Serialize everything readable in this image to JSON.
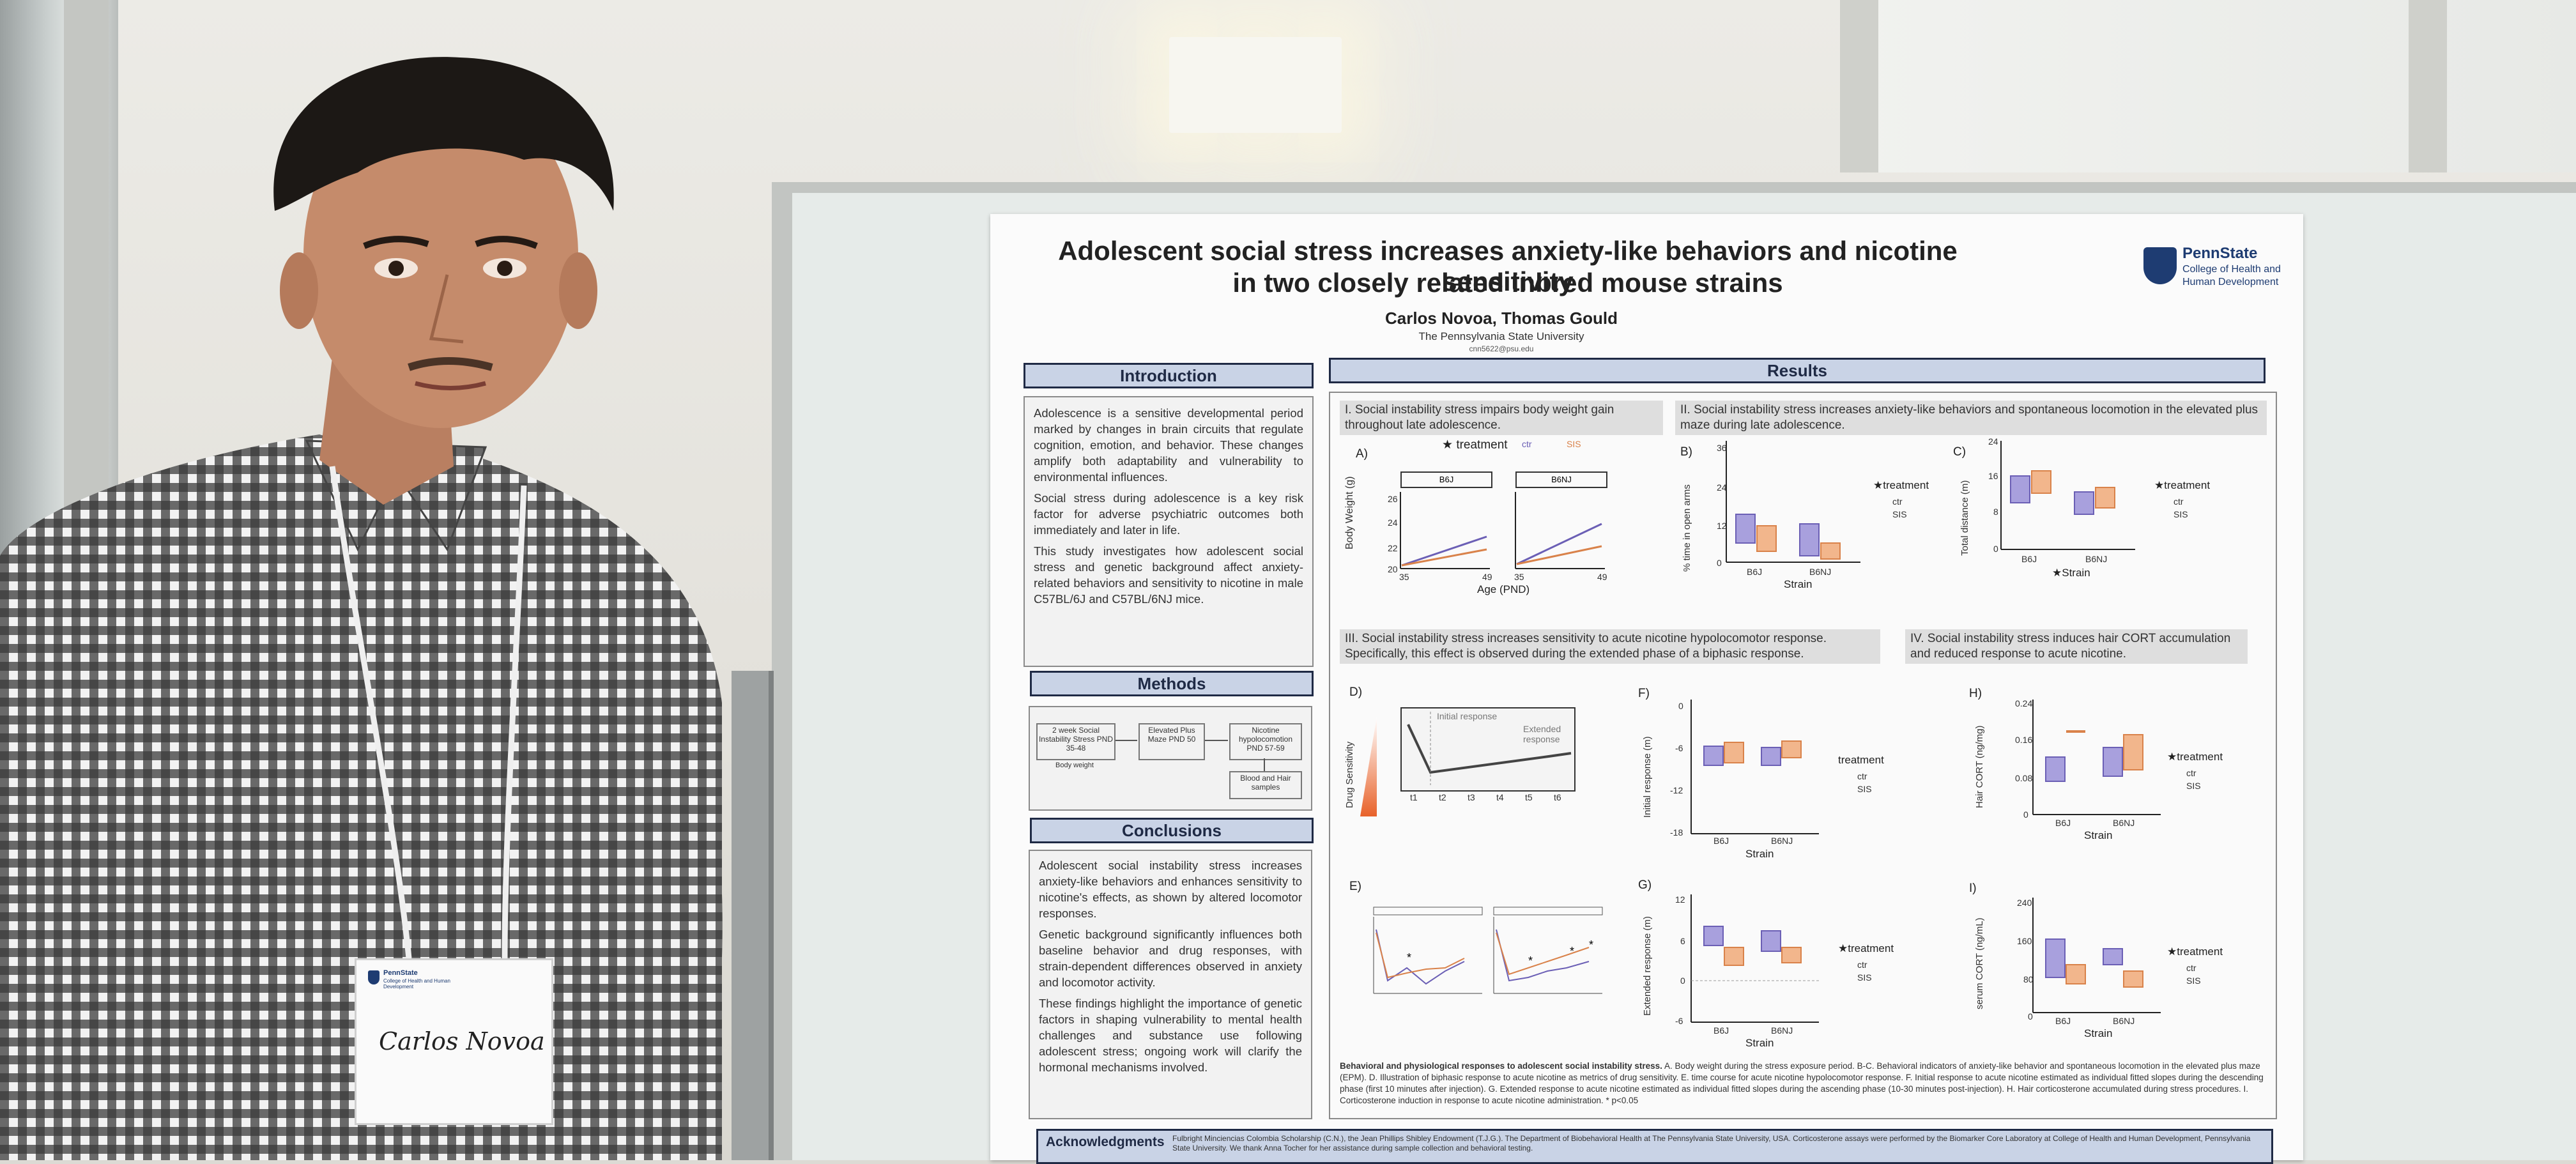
{
  "poster": {
    "title_line1": "Adolescent social stress increases anxiety-like behaviors and nicotine sensitivity",
    "title_line2": "in two closely related inbred mouse strains",
    "authors": "Carlos Novoa, Thomas Gould",
    "affiliation": "The Pennsylvania State University",
    "email": "cnn5622@psu.edu",
    "logo_name": "PennState",
    "logo_line1": "College of Health and",
    "logo_line2": "Human Development",
    "sections": {
      "introduction": "Introduction",
      "methods": "Methods",
      "conclusions": "Conclusions",
      "results": "Results",
      "acknowledgments": "Acknowledgments"
    },
    "intro_paragraphs": [
      "Adolescence is a sensitive developmental period marked by changes in brain circuits that regulate cognition, emotion, and behavior. These changes amplify both adaptability and vulnerability to environmental influences.",
      "Social stress during adolescence is a key risk factor for adverse psychiatric outcomes both immediately and later in life.",
      "This study investigates how adolescent social stress and genetic background affect anxiety-related behaviors and sensitivity to nicotine in male C57BL/6J and C57BL/6NJ mice."
    ],
    "methods_flow": {
      "box1": "2 week Social Instability Stress PND 35-48",
      "box2": "Elevated Plus Maze PND 50",
      "box3": "Nicotine hypolocomotion PND 57-59",
      "box4": "Blood and Hair samples",
      "note": "Body weight"
    },
    "conclusion_paragraphs": [
      "Adolescent social instability stress increases anxiety-like behaviors and enhances sensitivity to nicotine's effects, as shown by altered locomotor responses.",
      "Genetic background significantly influences both baseline behavior and drug responses, with strain-dependent differences observed in anxiety and locomotor activity.",
      "These findings highlight the importance of genetic factors in shaping vulnerability to mental health challenges and substance use following adolescent stress; ongoing work will clarify the hormonal mechanisms involved."
    ],
    "results": {
      "r1": "I. Social instability stress impairs body weight gain throughout late adolescence.",
      "r2": "II. Social instability stress increases anxiety-like behaviors and spontaneous locomotion in the elevated plus maze during late adolescence.",
      "r3": "III. Social instability stress increases sensitivity to acute nicotine hypolocomotor response. Specifically, this effect is observed during the extended phase of a biphasic response.",
      "r4": "IV. Social instability stress induces hair CORT accumulation and reduced response to acute nicotine.",
      "panelA": "A)",
      "panelB": "B)",
      "panelC": "C)",
      "panelD": "D)",
      "panelE": "E)",
      "panelF": "F)",
      "panelG": "G)",
      "panelH": "H)",
      "panelI": "I)",
      "legend_treatment": "treatment",
      "legend_ctr": "ctr",
      "legend_sis": "SIS",
      "strain_b6j": "B6J",
      "strain_b6nj": "B6NJ",
      "xlabel_strain": "Strain",
      "xlabel_age": "Age (PND)",
      "ylabel_weight": "Body Weight (g)",
      "ylabel_open": "% time in open arms",
      "ylabel_distance": "Total distance (m)",
      "ylabel_initial": "Initial response (m)",
      "ylabel_extended": "Extended response (m)",
      "ylabel_hair": "Hair CORT (ng/mg)",
      "ylabel_serum": "serum CORT (ng/mL)",
      "drug_sensitivity": "Drug Sensitivity",
      "initial_response": "Initial response",
      "extended_response": "Extended response",
      "weight_ticks": [
        "20",
        "22",
        "24",
        "26"
      ],
      "age_ticks": [
        "35",
        "49"
      ],
      "open_ticks": [
        "0",
        "12",
        "24",
        "36"
      ],
      "dist_ticks": [
        "0",
        "8",
        "16",
        "24"
      ],
      "initial_ticks": [
        "-18",
        "-12",
        "-6",
        "0"
      ],
      "extended_ticks": [
        "-6",
        "0",
        "6",
        "12"
      ],
      "hair_ticks": [
        "0",
        "0.08",
        "0.16",
        "0.24"
      ],
      "serum_ticks": [
        "0",
        "80",
        "160",
        "240"
      ],
      "d_ticks": [
        "t1",
        "t2",
        "t3",
        "t4",
        "t5",
        "t6"
      ]
    },
    "caption_title": "Behavioral and physiological responses to adolescent social instability stress.",
    "caption_body": "A. Body weight during the stress exposure period. B-C. Behavioral indicators of anxiety-like behavior and spontaneous locomotion in the elevated plus maze (EPM). D. Illustration of biphasic response to acute nicotine as metrics of drug sensitivity. E. time course for acute nicotine hypolocomotor response. F. Initial response to acute nicotine estimated as individual fitted slopes during the descending phase (first 10 minutes after injection). G. Extended response to acute nicotine estimated as individual fitted slopes during the ascending phase (10-30 minutes post-injection). H. Hair corticosterone accumulated during stress procedures. I. Corticosterone induction in response to acute nicotine administration. * p<0.05",
    "ack_text": "Fulbright Minciencias Colombia Scholarship (C.N.), the Jean Phillips Shibley Endowment (T.J.G.). The Department of Biobehavioral Health at The Pennsylvania State University, USA. Corticosterone assays were performed by the Biomarker Core Laboratory at College of Health and Human Development, Pennsylvania State University. We thank Anna Tocher for her assistance during sample collection and behavioral testing."
  },
  "badge": {
    "name": "Carlos Novoa",
    "org_line1": "PennState",
    "org_line2": "College of Health and Human Development"
  },
  "colors": {
    "ctr": "#6b5fb5",
    "sis": "#d9824a",
    "section_header_bg": "#c9d3e6",
    "section_header_border": "#1f2a45"
  }
}
